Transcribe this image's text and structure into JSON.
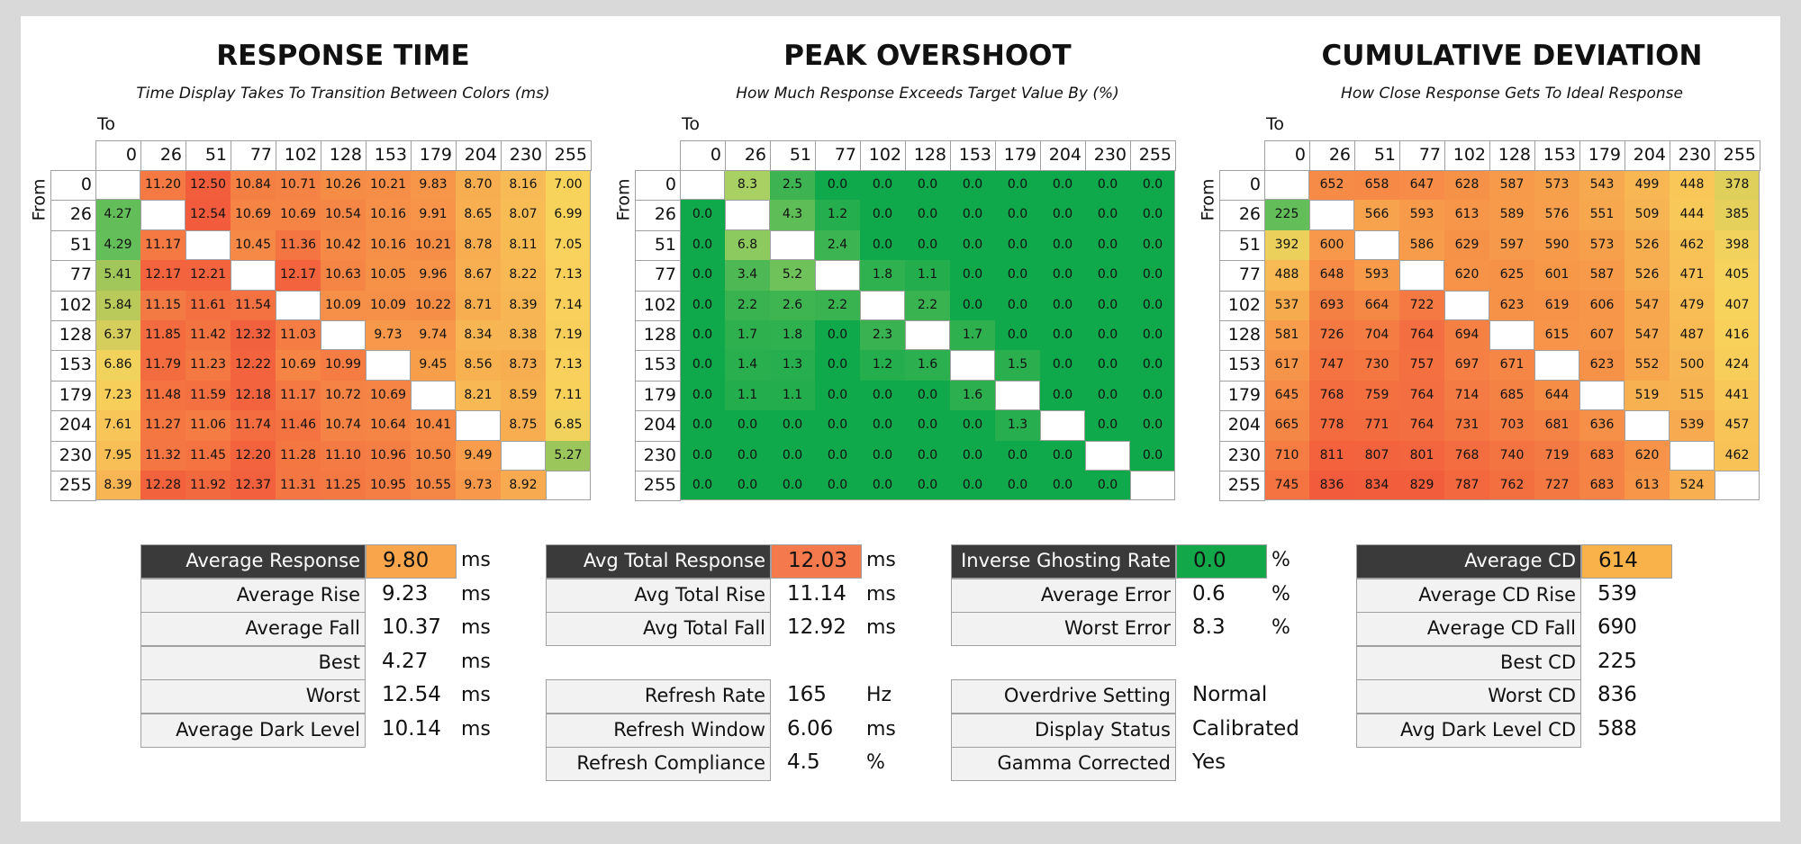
{
  "panels": [
    {
      "title": "RESPONSE TIME",
      "subtitle": "Time Display Takes To Transition Between Colors (ms)",
      "to_label": "To",
      "from_label": "From",
      "levels": [
        0,
        26,
        51,
        77,
        102,
        128,
        153,
        179,
        204,
        230,
        255
      ],
      "cells": [
        [
          null,
          "11.20",
          "12.50",
          "10.84",
          "10.71",
          "10.26",
          "10.21",
          "9.83",
          "8.70",
          "8.16",
          "7.00"
        ],
        [
          "4.27",
          null,
          "12.54",
          "10.69",
          "10.69",
          "10.54",
          "10.16",
          "9.91",
          "8.65",
          "8.07",
          "6.99"
        ],
        [
          "4.29",
          "11.17",
          null,
          "10.45",
          "11.36",
          "10.42",
          "10.16",
          "10.21",
          "8.78",
          "8.11",
          "7.05"
        ],
        [
          "5.41",
          "12.17",
          "12.21",
          null,
          "12.17",
          "10.63",
          "10.05",
          "9.96",
          "8.67",
          "8.22",
          "7.13"
        ],
        [
          "5.84",
          "11.15",
          "11.61",
          "11.54",
          null,
          "10.09",
          "10.09",
          "10.22",
          "8.71",
          "8.39",
          "7.14"
        ],
        [
          "6.37",
          "11.85",
          "11.42",
          "12.32",
          "11.03",
          null,
          "9.73",
          "9.74",
          "8.34",
          "8.38",
          "7.19"
        ],
        [
          "6.86",
          "11.79",
          "11.23",
          "12.22",
          "10.69",
          "10.99",
          null,
          "9.45",
          "8.56",
          "8.73",
          "7.13"
        ],
        [
          "7.23",
          "11.48",
          "11.59",
          "12.18",
          "11.17",
          "10.72",
          "10.69",
          null,
          "8.21",
          "8.59",
          "7.11"
        ],
        [
          "7.61",
          "11.27",
          "11.06",
          "11.74",
          "11.46",
          "10.74",
          "10.64",
          "10.41",
          null,
          "8.75",
          "6.85"
        ],
        [
          "7.95",
          "11.32",
          "11.45",
          "12.20",
          "11.28",
          "11.10",
          "10.96",
          "10.50",
          "9.49",
          null,
          "5.27"
        ],
        [
          "8.39",
          "12.28",
          "11.92",
          "12.37",
          "11.31",
          "11.25",
          "10.95",
          "10.55",
          "9.73",
          "8.92",
          null
        ]
      ]
    },
    {
      "title": "PEAK OVERSHOOT",
      "subtitle": "How Much Response Exceeds Target Value By (%)",
      "to_label": "To",
      "from_label": "From",
      "levels": [
        0,
        26,
        51,
        77,
        102,
        128,
        153,
        179,
        204,
        230,
        255
      ],
      "cells": [
        [
          null,
          "8.3",
          "2.5",
          "0.0",
          "0.0",
          "0.0",
          "0.0",
          "0.0",
          "0.0",
          "0.0",
          "0.0"
        ],
        [
          "0.0",
          null,
          "4.3",
          "1.2",
          "0.0",
          "0.0",
          "0.0",
          "0.0",
          "0.0",
          "0.0",
          "0.0"
        ],
        [
          "0.0",
          "6.8",
          null,
          "2.4",
          "0.0",
          "0.0",
          "0.0",
          "0.0",
          "0.0",
          "0.0",
          "0.0"
        ],
        [
          "0.0",
          "3.4",
          "5.2",
          null,
          "1.8",
          "1.1",
          "0.0",
          "0.0",
          "0.0",
          "0.0",
          "0.0"
        ],
        [
          "0.0",
          "2.2",
          "2.6",
          "2.2",
          null,
          "2.2",
          "0.0",
          "0.0",
          "0.0",
          "0.0",
          "0.0"
        ],
        [
          "0.0",
          "1.7",
          "1.8",
          "0.0",
          "2.3",
          null,
          "1.7",
          "0.0",
          "0.0",
          "0.0",
          "0.0"
        ],
        [
          "0.0",
          "1.4",
          "1.3",
          "0.0",
          "1.2",
          "1.6",
          null,
          "1.5",
          "0.0",
          "0.0",
          "0.0"
        ],
        [
          "0.0",
          "1.1",
          "1.1",
          "0.0",
          "0.0",
          "0.0",
          "1.6",
          null,
          "0.0",
          "0.0",
          "0.0"
        ],
        [
          "0.0",
          "0.0",
          "0.0",
          "0.0",
          "0.0",
          "0.0",
          "0.0",
          "1.3",
          null,
          "0.0",
          "0.0"
        ],
        [
          "0.0",
          "0.0",
          "0.0",
          "0.0",
          "0.0",
          "0.0",
          "0.0",
          "0.0",
          "0.0",
          null,
          "0.0"
        ],
        [
          "0.0",
          "0.0",
          "0.0",
          "0.0",
          "0.0",
          "0.0",
          "0.0",
          "0.0",
          "0.0",
          "0.0",
          null
        ]
      ]
    },
    {
      "title": "CUMULATIVE DEVIATION",
      "subtitle": "How Close Response Gets To Ideal Response",
      "to_label": "To",
      "from_label": "From",
      "levels": [
        0,
        26,
        51,
        77,
        102,
        128,
        153,
        179,
        204,
        230,
        255
      ],
      "cells": [
        [
          null,
          652,
          658,
          647,
          628,
          587,
          573,
          543,
          499,
          448,
          378
        ],
        [
          225,
          null,
          566,
          593,
          613,
          589,
          576,
          551,
          509,
          444,
          385
        ],
        [
          392,
          600,
          null,
          586,
          629,
          597,
          590,
          573,
          526,
          462,
          398
        ],
        [
          488,
          648,
          593,
          null,
          620,
          625,
          601,
          587,
          526,
          471,
          405
        ],
        [
          537,
          693,
          664,
          722,
          null,
          623,
          619,
          606,
          547,
          479,
          407
        ],
        [
          581,
          726,
          704,
          764,
          694,
          null,
          615,
          607,
          547,
          487,
          416
        ],
        [
          617,
          747,
          730,
          757,
          697,
          671,
          null,
          623,
          552,
          500,
          424
        ],
        [
          645,
          768,
          759,
          764,
          714,
          685,
          644,
          null,
          519,
          515,
          441
        ],
        [
          665,
          778,
          771,
          764,
          731,
          703,
          681,
          636,
          null,
          539,
          457
        ],
        [
          710,
          811,
          807,
          801,
          768,
          740,
          719,
          683,
          620,
          null,
          462
        ],
        [
          745,
          836,
          834,
          829,
          787,
          762,
          727,
          683,
          613,
          524,
          null
        ]
      ]
    }
  ],
  "stats": [
    {
      "groups": [
        [
          {
            "label": "Average Response",
            "value": "9.80",
            "unit": "ms"
          },
          {
            "label": "Average Rise",
            "value": "9.23",
            "unit": "ms"
          },
          {
            "label": "Average Fall",
            "value": "10.37",
            "unit": "ms"
          },
          {
            "label": "Best",
            "value": "4.27",
            "unit": "ms"
          },
          {
            "label": "Worst",
            "value": "12.54",
            "unit": "ms"
          },
          {
            "label": "Average Dark Level",
            "value": "10.14",
            "unit": "ms"
          }
        ]
      ]
    },
    {
      "groups": [
        [
          {
            "label": "Avg Total Response",
            "value": "12.03",
            "unit": "ms"
          },
          {
            "label": "Avg Total Rise",
            "value": "11.14",
            "unit": "ms"
          },
          {
            "label": "Avg Total Fall",
            "value": "12.92",
            "unit": "ms"
          }
        ],
        [
          {
            "label": "Refresh Rate",
            "value": "165",
            "unit": "Hz"
          },
          {
            "label": "Refresh Window",
            "value": "6.06",
            "unit": "ms"
          },
          {
            "label": "Refresh Compliance",
            "value": "4.5",
            "unit": "%"
          }
        ]
      ]
    },
    {
      "groups": [
        [
          {
            "label": "Inverse Ghosting Rate",
            "value": "0.0",
            "unit": "%"
          },
          {
            "label": "Average Error",
            "value": "0.6",
            "unit": "%"
          },
          {
            "label": "Worst Error",
            "value": "8.3",
            "unit": "%"
          }
        ],
        [
          {
            "label": "Overdrive Setting",
            "value": "Normal"
          },
          {
            "label": "Display Status",
            "value": "Calibrated"
          },
          {
            "label": "Gamma Corrected",
            "value": "Yes"
          }
        ]
      ]
    },
    {
      "groups": [
        [
          {
            "label": "Average CD",
            "value": "614"
          },
          {
            "label": "Average CD Rise",
            "value": "539"
          },
          {
            "label": "Average CD Fall",
            "value": "690"
          },
          {
            "label": "Best CD",
            "value": "225"
          },
          {
            "label": "Worst CD",
            "value": "836"
          },
          {
            "label": "Avg Dark Level CD",
            "value": "588"
          }
        ]
      ]
    }
  ]
}
